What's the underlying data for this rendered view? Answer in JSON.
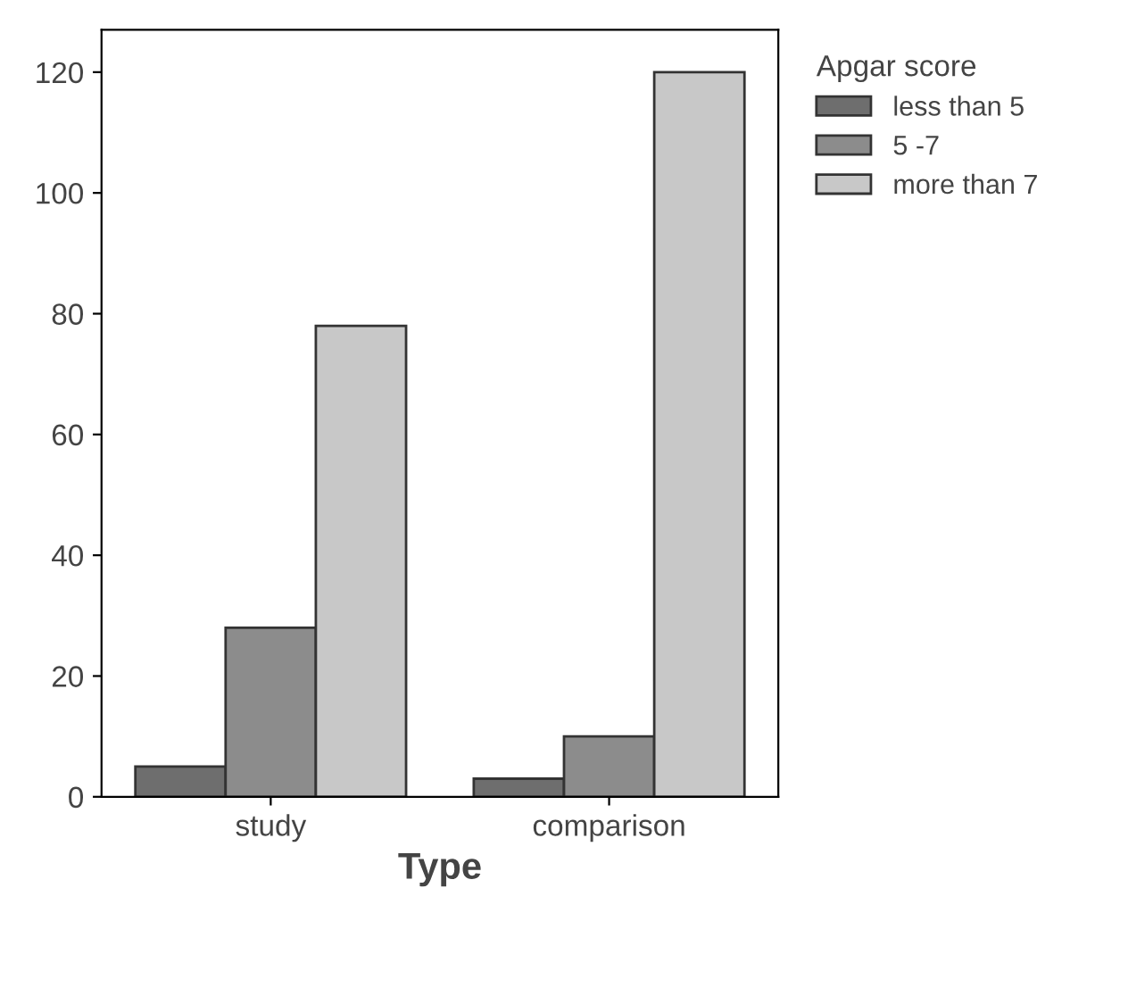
{
  "chart_data": {
    "type": "bar",
    "xlabel": "Type",
    "legend_title": "Apgar score",
    "categories": [
      "study",
      "comparison"
    ],
    "series": [
      {
        "name": "less than 5",
        "color": "#6e6e6e",
        "values": [
          5,
          3
        ]
      },
      {
        "name": "5 -7",
        "color": "#8c8c8c",
        "values": [
          28,
          10
        ]
      },
      {
        "name": "more than 7",
        "color": "#c8c8c8",
        "values": [
          78,
          120
        ]
      }
    ],
    "ylim": [
      0,
      127
    ],
    "yticks": [
      0,
      20,
      40,
      60,
      80,
      100,
      120
    ],
    "grid": false,
    "legend": "right"
  }
}
